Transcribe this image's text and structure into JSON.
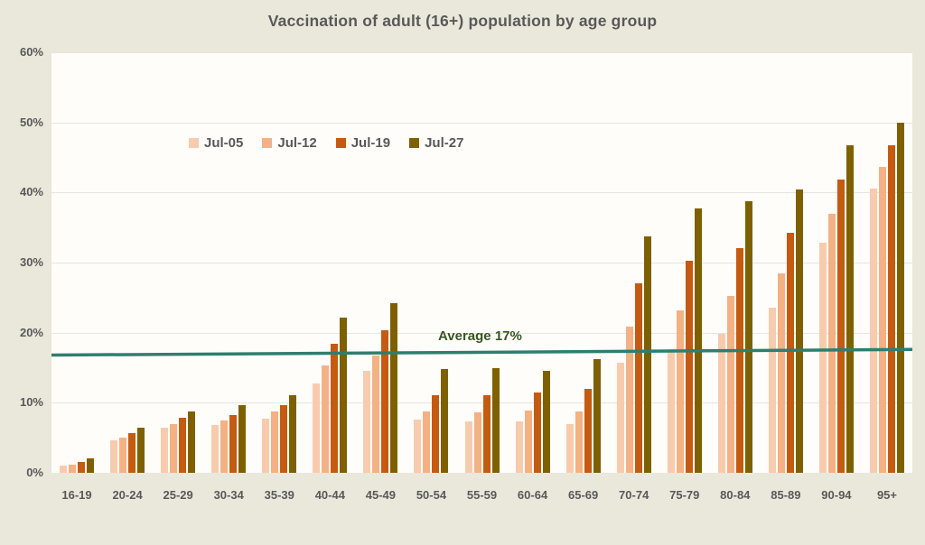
{
  "title": "Vaccination of adult (16+) population by age group",
  "colors": {
    "page_background": "#EAE7DB",
    "plot_background": "#FEFDFA",
    "gridline": "#E7E5DF",
    "text": "#595959",
    "average_line": "#2E7E6E",
    "average_label": "#375623"
  },
  "chart_data": {
    "type": "bar",
    "title": "Vaccination of adult (16+) population by age group",
    "xlabel": "",
    "ylabel": "",
    "ylim": [
      0,
      60
    ],
    "grid": "horizontal",
    "legend_position": "inside-top-left",
    "y_tick_labels": [
      "0%",
      "10%",
      "20%",
      "30%",
      "40%",
      "50%",
      "60%"
    ],
    "y_tick_values": [
      0,
      10,
      20,
      30,
      40,
      50,
      60
    ],
    "categories": [
      "16-19",
      "20-24",
      "25-29",
      "30-34",
      "35-39",
      "40-44",
      "45-49",
      "50-54",
      "55-59",
      "60-64",
      "65-69",
      "70-74",
      "75-79",
      "80-84",
      "85-89",
      "90-94",
      "95+"
    ],
    "series": [
      {
        "name": "Jul-05",
        "color": "#F8CBAD",
        "values": [
          1.0,
          4.7,
          6.5,
          6.8,
          7.7,
          12.8,
          14.6,
          7.6,
          7.3,
          7.4,
          6.9,
          15.7,
          17.7,
          19.8,
          23.6,
          32.8,
          40.6
        ]
      },
      {
        "name": "Jul-12",
        "color": "#F4B183",
        "values": [
          1.2,
          5.0,
          7.0,
          7.5,
          8.7,
          15.3,
          16.8,
          8.8,
          8.6,
          8.9,
          8.7,
          20.8,
          23.2,
          25.3,
          28.4,
          37.0,
          43.6
        ]
      },
      {
        "name": "Jul-19",
        "color": "#C55A11",
        "values": [
          1.6,
          5.7,
          7.8,
          8.3,
          9.7,
          18.4,
          20.4,
          11.1,
          11.1,
          11.4,
          12.0,
          27.1,
          30.3,
          32.0,
          34.3,
          41.9,
          46.7
        ]
      },
      {
        "name": "Jul-27",
        "color": "#7F6000",
        "values": [
          2.0,
          6.4,
          8.8,
          9.7,
          11.1,
          22.2,
          24.2,
          14.8,
          15.0,
          14.6,
          16.2,
          33.7,
          37.7,
          38.8,
          40.4,
          46.7,
          50.0
        ]
      }
    ],
    "average_line": {
      "label": "Average 17%",
      "value": 17,
      "start_value": 16.8,
      "end_value": 17.6
    }
  }
}
